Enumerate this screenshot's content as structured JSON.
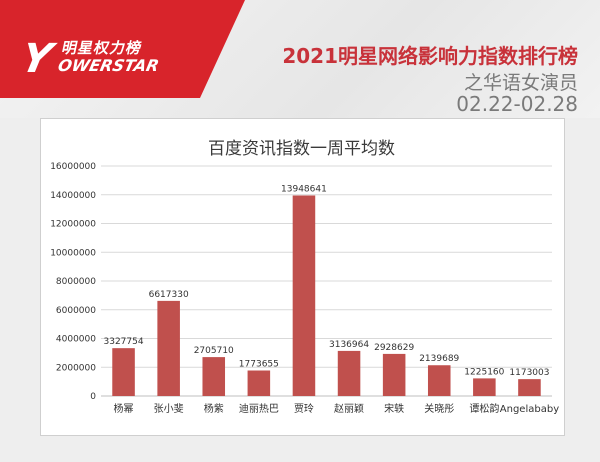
{
  "header": {
    "logo_cn": "明星权力榜",
    "logo_en": "OWERSTAR",
    "logo_mark": "Y",
    "title": "2021明星网络影响力指数排行榜",
    "subtitle": "之华语女演员",
    "date_range": "02.22-02.28"
  },
  "colors": {
    "bar": "#c0504d",
    "brand_red": "#d8242b",
    "title_red": "#c8323a"
  },
  "chart_data": {
    "type": "bar",
    "title": "百度资讯指数一周平均数",
    "categories": [
      "杨幂",
      "张小斐",
      "杨紫",
      "迪丽热巴",
      "贾玲",
      "赵丽颖",
      "宋轶",
      "关晓彤",
      "谭松韵",
      "Angelababy"
    ],
    "values": [
      3327754,
      6617330,
      2705710,
      1773655,
      13948641,
      3136964,
      2928629,
      2139689,
      1225160,
      1173003
    ],
    "y_ticks": [
      "0",
      "2000000",
      "4000000",
      "6000000",
      "8000000",
      "10000000",
      "12000000",
      "14000000",
      "16000000"
    ],
    "ylim": [
      0,
      16000000
    ],
    "grid": true,
    "xlabel": "",
    "ylabel": ""
  }
}
